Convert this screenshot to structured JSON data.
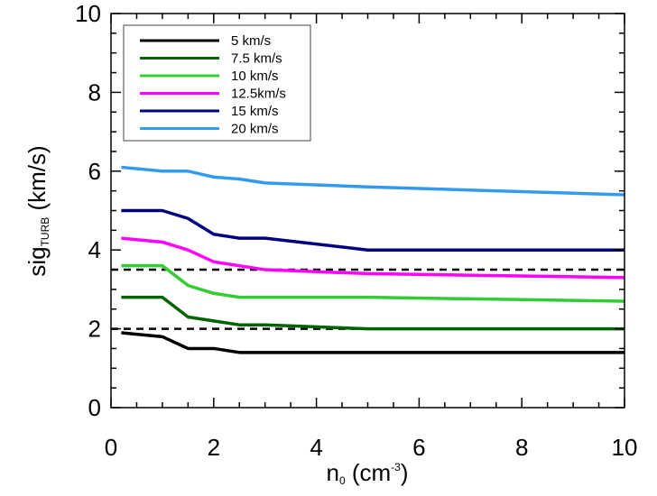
{
  "chart_data": {
    "type": "line",
    "title": "",
    "xlabel": {
      "base": "n",
      "sub": "0",
      "mid": " (cm",
      "sup": "-3",
      "end": ")"
    },
    "ylabel": {
      "base": "sig",
      "sub": "TURB",
      "end": " (km/s)"
    },
    "xlim": [
      0,
      10
    ],
    "ylim": [
      0,
      10
    ],
    "xticks": [
      0,
      2,
      4,
      6,
      8,
      10
    ],
    "yticks": [
      0,
      2,
      4,
      6,
      8,
      10
    ],
    "xtick_labels": [
      "0",
      "2",
      "4",
      "6",
      "8",
      "10"
    ],
    "ytick_labels": [
      "0",
      "2",
      "4",
      "6",
      "8",
      "10"
    ],
    "grid": false,
    "legend_position": "top-left",
    "series": [
      {
        "name": "5 km/s",
        "color": "#000000",
        "x": [
          0.2,
          1.0,
          1.5,
          2.0,
          2.5,
          3.0,
          5.0,
          10.0
        ],
        "y": [
          1.9,
          1.8,
          1.5,
          1.5,
          1.4,
          1.4,
          1.4,
          1.4
        ]
      },
      {
        "name": "7.5 km/s",
        "color": "#006400",
        "x": [
          0.2,
          1.0,
          1.5,
          2.0,
          2.5,
          3.0,
          5.0,
          10.0
        ],
        "y": [
          2.8,
          2.8,
          2.3,
          2.2,
          2.1,
          2.1,
          2.0,
          2.0
        ]
      },
      {
        "name": "10 km/s",
        "color": "#32cd32",
        "x": [
          0.2,
          1.0,
          1.5,
          2.0,
          2.5,
          3.0,
          5.0,
          10.0
        ],
        "y": [
          3.6,
          3.6,
          3.1,
          2.9,
          2.8,
          2.8,
          2.8,
          2.7
        ]
      },
      {
        "name": "12.5km/s",
        "color": "#ff00ff",
        "x": [
          0.2,
          1.0,
          1.5,
          2.0,
          2.5,
          3.0,
          5.0,
          10.0
        ],
        "y": [
          4.3,
          4.2,
          4.0,
          3.7,
          3.6,
          3.5,
          3.4,
          3.3
        ]
      },
      {
        "name": "15 km/s",
        "color": "#000080",
        "x": [
          0.2,
          1.0,
          1.5,
          2.0,
          2.5,
          3.0,
          5.0,
          10.0
        ],
        "y": [
          5.0,
          5.0,
          4.8,
          4.4,
          4.3,
          4.3,
          4.0,
          4.0
        ]
      },
      {
        "name": "20 km/s",
        "color": "#3399ee",
        "x": [
          0.2,
          1.0,
          1.5,
          2.0,
          2.5,
          3.0,
          5.0,
          10.0
        ],
        "y": [
          6.1,
          6.0,
          6.0,
          5.85,
          5.8,
          5.7,
          5.6,
          5.4
        ]
      }
    ],
    "reference_lines": [
      {
        "y": 3.5,
        "style": "dashed",
        "color": "#000000"
      },
      {
        "y": 2.0,
        "style": "dashed",
        "color": "#000000"
      }
    ]
  }
}
